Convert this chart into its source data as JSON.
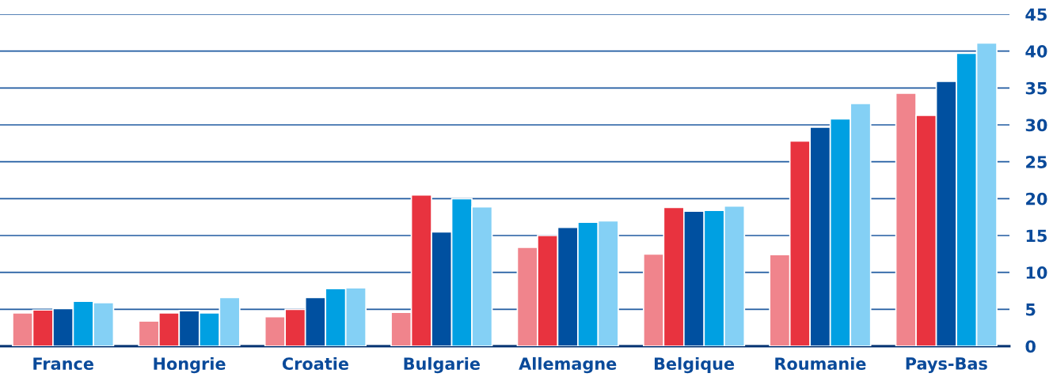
{
  "chart_data": {
    "type": "bar",
    "categories": [
      "France",
      "Hongrie",
      "Croatie",
      "Bulgarie",
      "Allemagne",
      "Belgique",
      "Roumanie",
      "Pays-Bas"
    ],
    "series": [
      {
        "color": "#f0848c",
        "values": [
          4.5,
          3.4,
          4.0,
          4.6,
          13.4,
          12.5,
          12.4,
          34.3
        ]
      },
      {
        "color": "#e8333f",
        "values": [
          4.9,
          4.5,
          5.0,
          20.5,
          15.0,
          18.8,
          27.8,
          31.3
        ]
      },
      {
        "color": "#0050a0",
        "values": [
          5.1,
          4.8,
          6.6,
          15.5,
          16.1,
          18.3,
          29.7,
          35.9
        ]
      },
      {
        "color": "#00a0e2",
        "values": [
          6.1,
          4.5,
          7.8,
          20.0,
          16.8,
          18.4,
          30.8,
          39.7
        ]
      },
      {
        "color": "#84d0f5",
        "values": [
          5.9,
          6.6,
          7.9,
          18.9,
          17.0,
          19.0,
          32.9,
          41.1
        ]
      }
    ],
    "ylim": [
      0,
      45
    ],
    "yticks": [
      0,
      5,
      10,
      15,
      20,
      25,
      30,
      35,
      40,
      45
    ],
    "grid": "y"
  }
}
